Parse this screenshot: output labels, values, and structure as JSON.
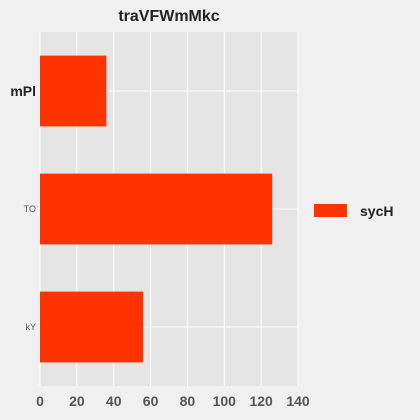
{
  "chart_data": {
    "type": "bar",
    "orientation": "horizontal",
    "title": "traVFWmMkc",
    "xlabel": "",
    "ylabel": "",
    "categories": [
      "mPl",
      "TO",
      "kY"
    ],
    "series": [
      {
        "name": "sycH",
        "values": [
          36,
          126,
          56
        ],
        "color": "#ff3300"
      }
    ],
    "xlim": [
      0,
      140
    ],
    "xticks": [
      0,
      20,
      40,
      60,
      80,
      100,
      120,
      140
    ],
    "grid": true,
    "legend_placement": "right",
    "background_color": "#f0f0f0",
    "plot_background_color": "#e5e5e5",
    "grid_color": "#ffffff"
  }
}
